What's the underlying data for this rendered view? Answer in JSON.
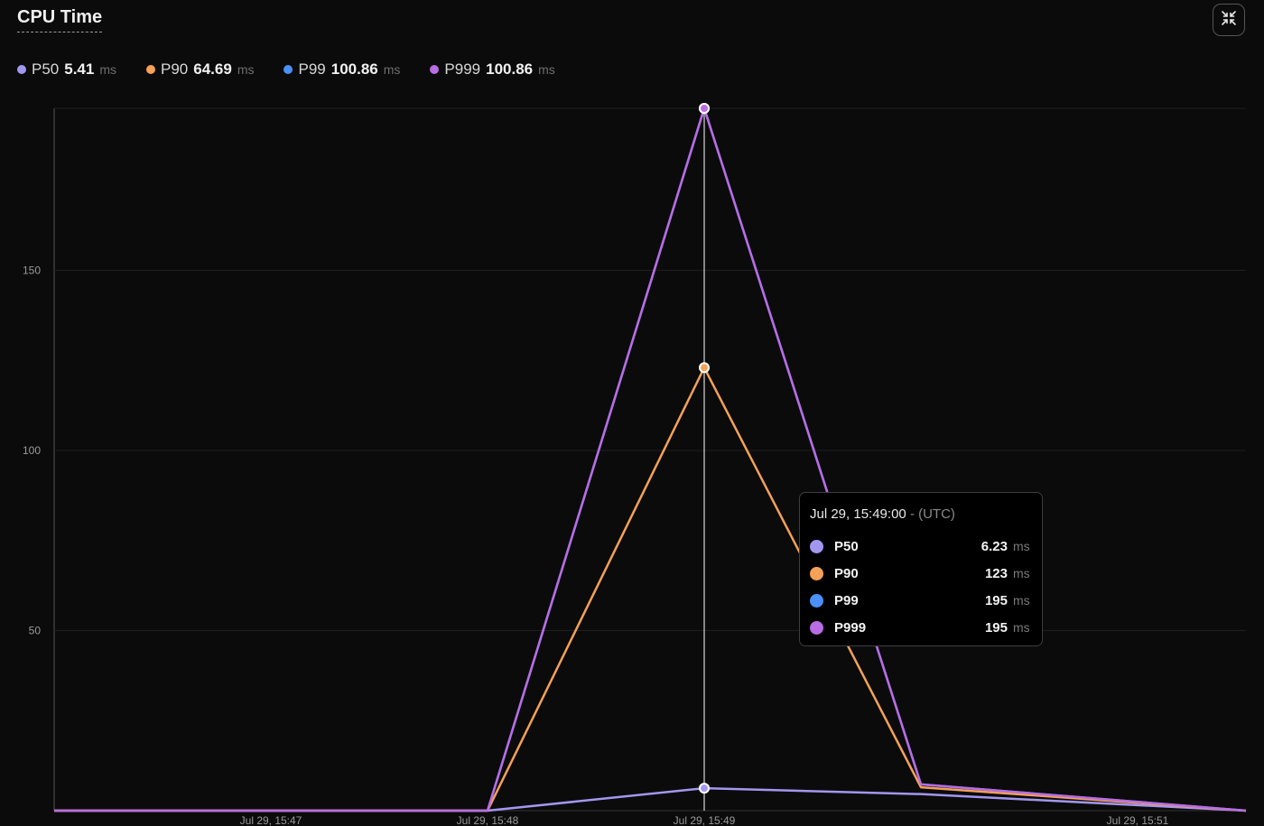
{
  "panel": {
    "title": "CPU Time"
  },
  "legend": {
    "unit": "ms",
    "items": [
      {
        "name": "P50",
        "value": "5.41",
        "color": "#a297f0"
      },
      {
        "name": "P90",
        "value": "64.69",
        "color": "#f5a157"
      },
      {
        "name": "P99",
        "value": "100.86",
        "color": "#4b8ff7"
      },
      {
        "name": "P999",
        "value": "100.86",
        "color": "#b96ce3"
      }
    ]
  },
  "tooltip": {
    "time": "Jul 29, 15:49:00",
    "separator": "-",
    "timezone": "(UTC)",
    "unit": "ms",
    "rows": [
      {
        "name": "P50",
        "value": "6.23",
        "color": "#a297f0"
      },
      {
        "name": "P90",
        "value": "123",
        "color": "#f5a157"
      },
      {
        "name": "P99",
        "value": "195",
        "color": "#4b8ff7"
      },
      {
        "name": "P999",
        "value": "195",
        "color": "#b96ce3"
      }
    ]
  },
  "chart_data": {
    "type": "line",
    "x": [
      "Jul 29, 15:46:00",
      "Jul 29, 15:47:00",
      "Jul 29, 15:48:00",
      "Jul 29, 15:49:00",
      "Jul 29, 15:50:00",
      "Jul 29, 15:51:00"
    ],
    "xticks": [
      {
        "label": "Jul 29, 15:47",
        "t": 1
      },
      {
        "label": "Jul 29, 15:48",
        "t": 2
      },
      {
        "label": "Jul 29, 15:49",
        "t": 3
      },
      {
        "label": "Jul 29, 15:51",
        "t": 5
      }
    ],
    "yticks": [
      50,
      100,
      150
    ],
    "ylim": [
      0,
      195
    ],
    "x_t": [
      0,
      1,
      2,
      3,
      4,
      5.5
    ],
    "series": [
      {
        "name": "P50",
        "color": "#a297f0",
        "values": [
          0,
          0,
          0,
          6.23,
          4.6,
          0
        ]
      },
      {
        "name": "P90",
        "color": "#f5a157",
        "values": [
          0,
          0,
          0,
          123,
          6.5,
          0
        ]
      },
      {
        "name": "P99",
        "color": "#4b8ff7",
        "values": [
          0,
          0,
          0,
          195,
          7.3,
          0
        ]
      },
      {
        "name": "P999",
        "color": "#b96ce3",
        "values": [
          0,
          0,
          0,
          195,
          7.3,
          0
        ]
      }
    ],
    "hover_index": 3,
    "grid": true
  }
}
